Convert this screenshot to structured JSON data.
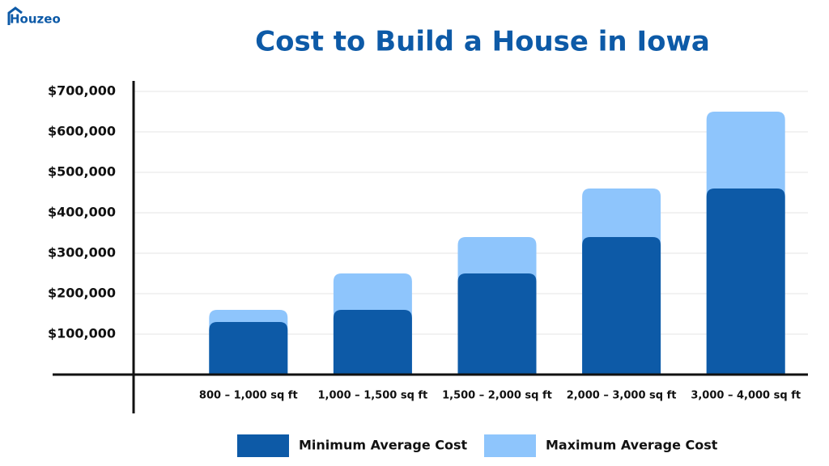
{
  "logo": "Houzeo",
  "chart_data": {
    "type": "bar",
    "title": "Cost to Build a House in Iowa",
    "categories": [
      "800 – 1,000 sq ft",
      "1,000 – 1,500 sq ft",
      "1,500 – 2,000 sq ft",
      "2,000 – 3,000 sq ft",
      "3,000 – 4,000 sq ft"
    ],
    "series": [
      {
        "name": "Minimum Average Cost",
        "color": "#0d5aa7",
        "values": [
          130000,
          160000,
          250000,
          340000,
          460000
        ]
      },
      {
        "name": "Maximum Average Cost",
        "color": "#8ec5fc",
        "values": [
          160000,
          250000,
          340000,
          460000,
          650000
        ]
      }
    ],
    "ylim": [
      0,
      700000
    ],
    "yticks": [
      {
        "value": 100000,
        "label": "$100,000"
      },
      {
        "value": 200000,
        "label": "$200,000"
      },
      {
        "value": 300000,
        "label": "$300,000"
      },
      {
        "value": 400000,
        "label": "$400,000"
      },
      {
        "value": 500000,
        "label": "$500,000"
      },
      {
        "value": 600000,
        "label": "$600,000"
      },
      {
        "value": 700000,
        "label": "$700,000"
      }
    ],
    "grid": true,
    "legend": "bottom"
  }
}
